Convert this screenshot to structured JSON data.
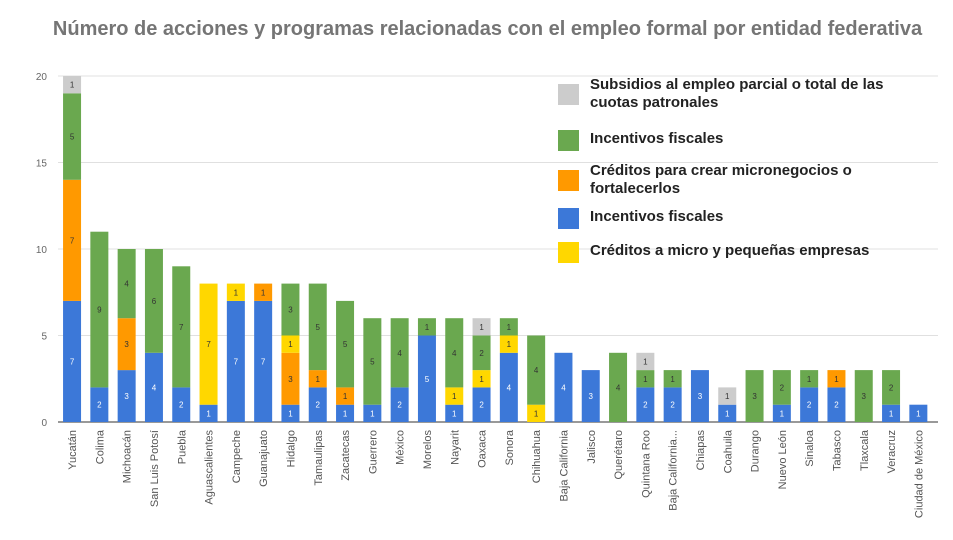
{
  "chart_data": {
    "type": "bar",
    "stacked": true,
    "title": "Número de acciones y programas relacionadas con el empleo formal por entidad federativa",
    "xlabel": "",
    "ylabel": "",
    "ylim": [
      0,
      20
    ],
    "yticks": [
      0,
      5,
      10,
      15,
      20
    ],
    "grid": true,
    "legend_position": "top-right",
    "categories": [
      "Yucatán",
      "Colima",
      "Michoacán",
      "San Luis Potosí",
      "Puebla",
      "Aguascalientes",
      "Campeche",
      "Guanajuato",
      "Hidalgo",
      "Tamaulipas",
      "Zacatecas",
      "Guerrero",
      "México",
      "Morelos",
      "Nayarit",
      "Oaxaca",
      "Sonora",
      "Chihuahua",
      "Baja California",
      "Jalisco",
      "Querétaro",
      "Quintana Roo",
      "Baja California...",
      "Chiapas",
      "Coahuila",
      "Durango",
      "Nuevo León",
      "Sinaloa",
      "Tabasco",
      "Tlaxcala",
      "Veracruz",
      "Ciudad de México"
    ],
    "series": [
      {
        "name": "Subsidios al empleo parcial o total de las cuotas patronales",
        "color": "#cccccc",
        "stack_position": 5,
        "values": [
          1,
          0,
          0,
          0,
          0,
          0,
          0,
          0,
          0,
          0,
          0,
          0,
          0,
          0,
          0,
          1,
          0,
          0,
          0,
          0,
          0,
          1,
          0,
          0,
          1,
          0,
          0,
          0,
          0,
          0,
          0,
          0
        ]
      },
      {
        "name": "Incentivos fiscales",
        "color": "#6aa84f",
        "stack_position": 4,
        "values": [
          5,
          9,
          4,
          6,
          7,
          0,
          0,
          0,
          3,
          5,
          5,
          5,
          4,
          1,
          4,
          2,
          1,
          4,
          0,
          0,
          4,
          1,
          1,
          0,
          0,
          3,
          2,
          1,
          0,
          3,
          2,
          0
        ]
      },
      {
        "name": "Créditos para crear micronegocios o fortalecerlos",
        "color": "#ff9900",
        "stack_position": 2,
        "values": [
          7,
          0,
          3,
          0,
          0,
          0,
          0,
          1,
          3,
          1,
          1,
          0,
          0,
          0,
          0,
          0,
          0,
          0,
          0,
          0,
          0,
          0,
          0,
          0,
          0,
          0,
          0,
          0,
          1,
          0,
          0,
          0
        ]
      },
      {
        "name": "Incentivos fiscales",
        "color": "#3c78d8",
        "stack_position": 1,
        "values": [
          7,
          2,
          3,
          4,
          2,
          1,
          7,
          7,
          1,
          2,
          1,
          1,
          2,
          5,
          1,
          2,
          4,
          0,
          4,
          3,
          0,
          2,
          2,
          3,
          1,
          0,
          1,
          2,
          2,
          0,
          1,
          1
        ]
      },
      {
        "name": "Créditos a micro y pequeñas empresas",
        "color": "#ffd700",
        "stack_position": 3,
        "values": [
          0,
          0,
          0,
          0,
          0,
          7,
          1,
          0,
          1,
          0,
          0,
          0,
          0,
          0,
          1,
          1,
          1,
          1,
          0,
          0,
          0,
          0,
          0,
          0,
          0,
          0,
          0,
          0,
          0,
          0,
          0,
          0
        ]
      }
    ]
  }
}
